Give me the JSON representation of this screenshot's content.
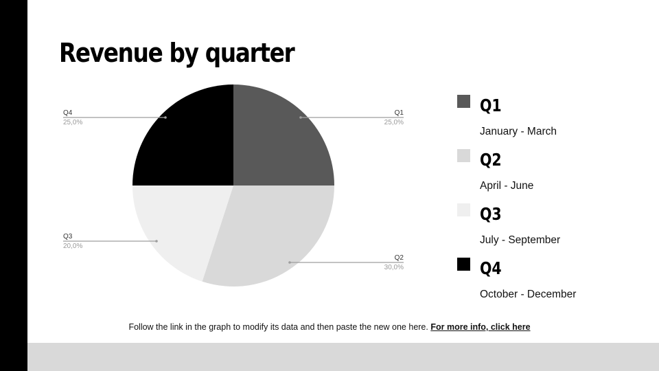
{
  "title": "Revenue by quarter",
  "chart_data": {
    "type": "pie",
    "categories": [
      "Q1",
      "Q2",
      "Q3",
      "Q4"
    ],
    "values": [
      25.0,
      30.0,
      20.0,
      25.0
    ],
    "value_labels": [
      "25,0%",
      "30,0%",
      "20,0%",
      "25,0%"
    ],
    "colors": [
      "#595959",
      "#d9d9d9",
      "#efefef",
      "#000000"
    ],
    "start": "12 o'clock",
    "direction": "clockwise"
  },
  "legend": [
    {
      "label": "Q1",
      "sub": "January - March",
      "color": "#595959"
    },
    {
      "label": "Q2",
      "sub": "April - June",
      "color": "#d9d9d9"
    },
    {
      "label": "Q3",
      "sub": "July - September",
      "color": "#efefef"
    },
    {
      "label": "Q4",
      "sub": "October - December",
      "color": "#000000"
    }
  ],
  "footer": {
    "text": "Follow the link in the graph to modify its data and then paste the new one here.",
    "link": "For more info, click  here"
  }
}
